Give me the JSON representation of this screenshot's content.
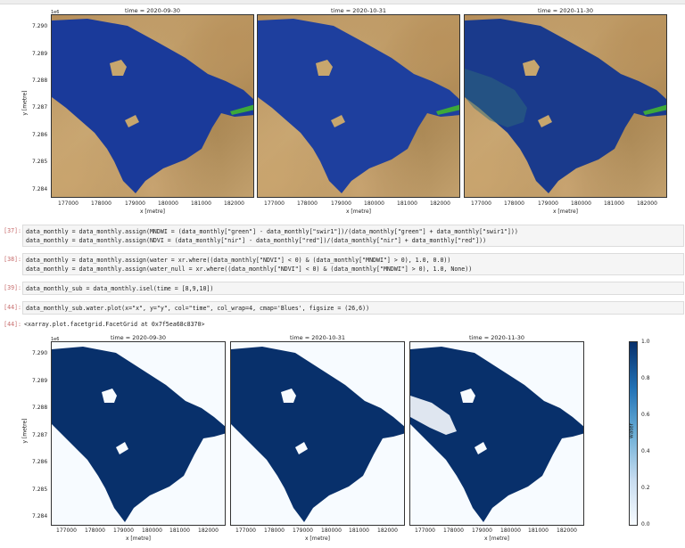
{
  "top_figure": {
    "panels": [
      {
        "title": "time = 2020-09-30"
      },
      {
        "title": "time = 2020-10-31"
      },
      {
        "title": "time = 2020-11-30"
      }
    ],
    "offset_label": "1e6",
    "ylabel": "y [metre]",
    "xlabel": "x [metre]",
    "yticks": [
      "7.290",
      "7.289",
      "7.288",
      "7.287",
      "7.286",
      "7.285",
      "7.284"
    ],
    "xticks": [
      "177000",
      "178000",
      "179000",
      "180000",
      "181000",
      "182000"
    ]
  },
  "cells": [
    {
      "prompt": "[37]:",
      "lines": [
        "data_monthly = data_monthly.assign(MNDWI = (data_monthly[\"green\"] - data_monthly[\"swir1\"])/(data_monthly[\"green\"] + data_monthly[\"swir1\"]))",
        "data_monthly = data_monthly.assign(NDVI = (data_monthly[\"nir\"] - data_monthly[\"red\"])/(data_monthly[\"nir\"] + data_monthly[\"red\"]))"
      ]
    },
    {
      "prompt": "[38]:",
      "lines": [
        "data_monthly = data_monthly.assign(water = xr.where((data_monthly[\"NDVI\"] < 0) & (data_monthly[\"MNDWI\"] > 0), 1.0, 0.0))",
        "data_monthly = data_monthly.assign(water_null = xr.where((data_monthly[\"NDVI\"] < 0) & (data_monthly[\"MNDWI\"] > 0), 1.0, None))"
      ]
    },
    {
      "prompt": "[39]:",
      "lines": [
        "data_monthly_sub = data_monthly.isel(time = [8,9,10])"
      ]
    },
    {
      "prompt": "[44]:",
      "lines": [
        "data_monthly_sub.water.plot(x=\"x\", y=\"y\", col=\"time\", col_wrap=4, cmap='Blues', figsize = (26,6))"
      ]
    }
  ],
  "output": {
    "prompt": "[44]:",
    "text": "<xarray.plot.facetgrid.FacetGrid at 0x7f5ea68c8370>"
  },
  "bottom_figure": {
    "panels": [
      {
        "title": "time = 2020-09-30"
      },
      {
        "title": "time = 2020-10-31"
      },
      {
        "title": "time = 2020-11-30"
      }
    ],
    "offset_label": "1e6",
    "ylabel": "y [metre]",
    "xlabel": "x [metre]",
    "yticks": [
      "7.290",
      "7.289",
      "7.288",
      "7.287",
      "7.286",
      "7.285",
      "7.284"
    ],
    "xticks": [
      "177000",
      "178000",
      "179000",
      "180000",
      "181000",
      "182000"
    ],
    "colorbar": {
      "label": "water",
      "ticks": [
        "1.0",
        "0.8",
        "0.6",
        "0.4",
        "0.2",
        "0.0"
      ],
      "colormap": "Blues"
    }
  },
  "colors": {
    "water_rgb": "#1a3a9a",
    "water_mask": "#08306b",
    "land": "#c0a06a",
    "prompt": "#c76b6b"
  }
}
